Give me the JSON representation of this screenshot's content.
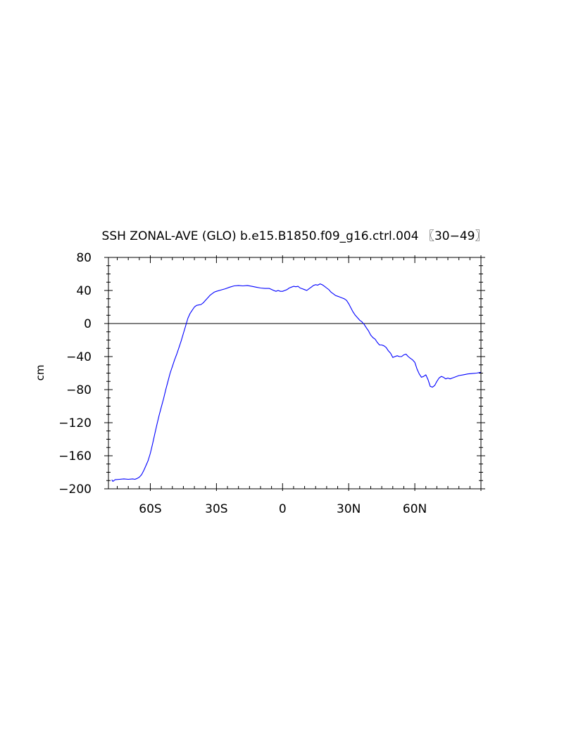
{
  "chart_data": {
    "type": "line",
    "title": "SSH ZONAL-AVE (GLO) b.e15.B1850.f09_g16.ctrl.004 〖30−49〗",
    "xlabel": "",
    "ylabel": "cm",
    "xlim": [
      -79,
      90
    ],
    "ylim": [
      -200,
      80
    ],
    "x_ticks": [
      {
        "value": -60,
        "label": "60S"
      },
      {
        "value": -30,
        "label": "30S"
      },
      {
        "value": 0,
        "label": "0"
      },
      {
        "value": 30,
        "label": "30N"
      },
      {
        "value": 60,
        "label": "60N"
      }
    ],
    "y_ticks": [
      {
        "value": 80,
        "label": "80"
      },
      {
        "value": 40,
        "label": "40"
      },
      {
        "value": 0,
        "label": "0"
      },
      {
        "value": -40,
        "label": "−40"
      },
      {
        "value": -80,
        "label": "−80"
      },
      {
        "value": -120,
        "label": "−120"
      },
      {
        "value": -160,
        "label": "−160"
      },
      {
        "value": -200,
        "label": "−200"
      }
    ],
    "grid": false,
    "reference_line": {
      "y": 0,
      "color": "#000000"
    },
    "series": [
      {
        "color": "#0000ff",
        "points": [
          [
            -77.5,
            -189
          ],
          [
            -77,
            -191
          ],
          [
            -76,
            -189
          ],
          [
            -74,
            -188.5
          ],
          [
            -72,
            -188
          ],
          [
            -70,
            -188.5
          ],
          [
            -68,
            -188
          ],
          [
            -67,
            -188.5
          ],
          [
            -66,
            -187.5
          ],
          [
            -65,
            -186
          ],
          [
            -64,
            -183
          ],
          [
            -63,
            -178
          ],
          [
            -62,
            -172
          ],
          [
            -61,
            -166
          ],
          [
            -60,
            -157
          ],
          [
            -59,
            -146
          ],
          [
            -58,
            -134
          ],
          [
            -57,
            -122
          ],
          [
            -56,
            -111
          ],
          [
            -55,
            -101
          ],
          [
            -54,
            -91
          ],
          [
            -53,
            -80
          ],
          [
            -52,
            -70
          ],
          [
            -51,
            -60
          ],
          [
            -50,
            -52
          ],
          [
            -49,
            -44
          ],
          [
            -48,
            -37
          ],
          [
            -47,
            -29
          ],
          [
            -46,
            -21
          ],
          [
            -45,
            -12
          ],
          [
            -44,
            -3
          ],
          [
            -43,
            6
          ],
          [
            -42,
            12
          ],
          [
            -41,
            16
          ],
          [
            -40,
            20
          ],
          [
            -39,
            22
          ],
          [
            -38,
            22.5
          ],
          [
            -37,
            23
          ],
          [
            -36,
            25
          ],
          [
            -35,
            28
          ],
          [
            -34,
            31
          ],
          [
            -33,
            34
          ],
          [
            -32,
            36
          ],
          [
            -31,
            38
          ],
          [
            -30,
            39
          ],
          [
            -28,
            40.5
          ],
          [
            -26,
            42
          ],
          [
            -24,
            44
          ],
          [
            -22,
            45.5
          ],
          [
            -20,
            46
          ],
          [
            -18,
            45.5
          ],
          [
            -16,
            46
          ],
          [
            -14,
            45
          ],
          [
            -12,
            44
          ],
          [
            -10,
            43
          ],
          [
            -8,
            42.5
          ],
          [
            -6,
            42.5
          ],
          [
            -4,
            40
          ],
          [
            -3,
            39
          ],
          [
            -2,
            40
          ],
          [
            -1,
            39
          ],
          [
            0,
            39
          ],
          [
            1,
            40
          ],
          [
            2,
            41
          ],
          [
            3,
            43
          ],
          [
            4,
            44
          ],
          [
            5,
            45
          ],
          [
            6,
            44.5
          ],
          [
            7,
            45
          ],
          [
            8,
            43
          ],
          [
            9,
            42
          ],
          [
            10,
            41
          ],
          [
            11,
            40
          ],
          [
            12,
            42
          ],
          [
            13,
            44
          ],
          [
            14,
            46
          ],
          [
            15,
            47
          ],
          [
            16,
            46.5
          ],
          [
            17,
            48
          ],
          [
            18,
            47
          ],
          [
            19,
            45
          ],
          [
            20,
            43
          ],
          [
            21,
            41
          ],
          [
            22,
            38
          ],
          [
            23,
            36
          ],
          [
            24,
            34
          ],
          [
            25,
            33
          ],
          [
            26,
            32
          ],
          [
            27,
            31
          ],
          [
            28,
            30
          ],
          [
            29,
            28
          ],
          [
            30,
            24
          ],
          [
            31,
            19
          ],
          [
            32,
            14
          ],
          [
            33,
            10
          ],
          [
            34,
            7
          ],
          [
            35,
            4
          ],
          [
            36,
            2
          ],
          [
            37,
            -1
          ],
          [
            38,
            -5
          ],
          [
            39,
            -9
          ],
          [
            40,
            -14
          ],
          [
            41,
            -17
          ],
          [
            42,
            -19
          ],
          [
            43,
            -23
          ],
          [
            44,
            -26
          ],
          [
            45,
            -26
          ],
          [
            46,
            -27
          ],
          [
            47,
            -29
          ],
          [
            48,
            -33
          ],
          [
            49,
            -36
          ],
          [
            50,
            -41
          ],
          [
            51,
            -40
          ],
          [
            52,
            -39
          ],
          [
            53,
            -40
          ],
          [
            54,
            -40
          ],
          [
            55,
            -38
          ],
          [
            56,
            -37
          ],
          [
            57,
            -40
          ],
          [
            58,
            -42
          ],
          [
            59,
            -44
          ],
          [
            60,
            -47
          ],
          [
            61,
            -55
          ],
          [
            62,
            -61
          ],
          [
            63,
            -65
          ],
          [
            64,
            -64
          ],
          [
            65,
            -62
          ],
          [
            66,
            -68
          ],
          [
            67,
            -76
          ],
          [
            68,
            -77
          ],
          [
            69,
            -75
          ],
          [
            70,
            -70
          ],
          [
            71,
            -66
          ],
          [
            72,
            -64
          ],
          [
            73,
            -65
          ],
          [
            74,
            -67
          ],
          [
            75,
            -66
          ],
          [
            76,
            -67
          ],
          [
            77,
            -66
          ],
          [
            78,
            -65
          ],
          [
            80,
            -63
          ],
          [
            82,
            -62
          ],
          [
            84,
            -61
          ],
          [
            86,
            -60.5
          ],
          [
            88,
            -60
          ],
          [
            90,
            -59
          ]
        ]
      }
    ]
  }
}
